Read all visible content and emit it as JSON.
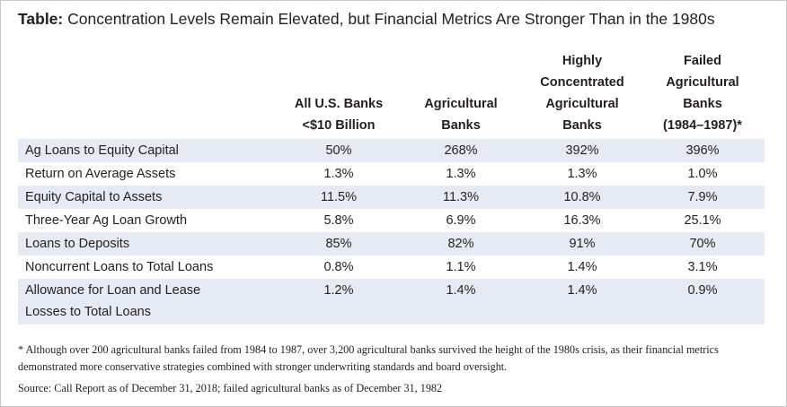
{
  "title": {
    "bold": "Table:",
    "text": " Concentration Levels Remain Elevated, but Financial Metrics Are Stronger Than in the 1980s"
  },
  "columns": [
    "All U.S. Banks\n<$10 Billion",
    "Agricultural\nBanks",
    "Highly\nConcentrated\nAgricultural\nBanks",
    "Failed\nAgricultural\nBanks\n(1984–1987)*"
  ],
  "rows": [
    {
      "label": "Ag Loans to Equity Capital",
      "values": [
        "50%",
        "268%",
        "392%",
        "396%"
      ]
    },
    {
      "label": "Return on Average Assets",
      "values": [
        "1.3%",
        "1.3%",
        "1.3%",
        "1.0%"
      ]
    },
    {
      "label": "Equity Capital to Assets",
      "values": [
        "11.5%",
        "11.3%",
        "10.8%",
        "7.9%"
      ]
    },
    {
      "label": "Three-Year Ag Loan Growth",
      "values": [
        "5.8%",
        "6.9%",
        "16.3%",
        "25.1%"
      ]
    },
    {
      "label": "Loans to Deposits",
      "values": [
        "85%",
        "82%",
        "91%",
        "70%"
      ]
    },
    {
      "label": "Noncurrent Loans to Total Loans",
      "values": [
        "0.8%",
        "1.1%",
        "1.4%",
        "3.1%"
      ]
    },
    {
      "label": "Allowance for Loan and Lease\nLosses to Total Loans",
      "values": [
        "1.2%",
        "1.4%",
        "1.4%",
        "0.9%"
      ]
    }
  ],
  "footnote": "* Although over 200 agricultural banks failed from 1984 to 1987, over 3,200 agricultural banks survived the height of the 1980s crisis, as their financial metrics demonstrated more conservative strategies combined with stronger underwriting standards and board oversight.",
  "source": "Source: Call Report as of December 31, 2018; failed agricultural banks as of December 31, 1982",
  "colors": {
    "row_shade": "#e6eaf2",
    "text": "#231f20",
    "border": "#c8c8c8"
  }
}
